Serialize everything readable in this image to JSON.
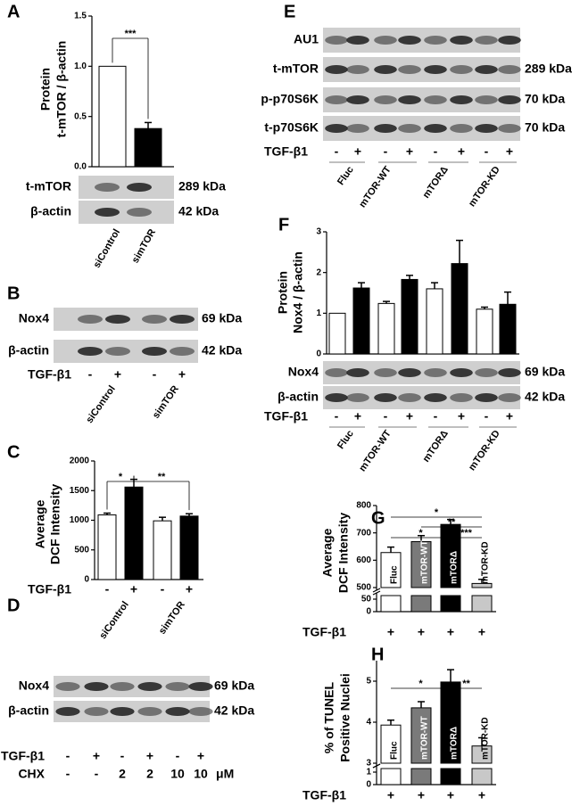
{
  "panel_labels": [
    "A",
    "B",
    "C",
    "D",
    "E",
    "F",
    "G",
    "H"
  ],
  "chart_data": [
    {
      "type": "bar",
      "ylabel": [
        "Protein",
        "t-mTOR / β-actin"
      ],
      "categories": [
        "siControl",
        "simTOR"
      ],
      "values": [
        1.0,
        0.38
      ],
      "errors": [
        null,
        0.06
      ],
      "colors": [
        "#ffffff",
        "#000000"
      ],
      "ylim": [
        0,
        1.5
      ],
      "yticks": [
        {
          "value": 0,
          "label": "0.0"
        },
        0.5,
        {
          "value": 1,
          "label": "1.0"
        },
        1.5
      ],
      "annotations": [
        "***"
      ]
    },
    {
      "type": "bar",
      "ylabel": [
        "Average",
        "DCF Intensity"
      ],
      "values": [
        1090,
        1560,
        990,
        1070
      ],
      "errors": [
        30,
        130,
        60,
        40
      ],
      "colors": [
        "#ffffff",
        "#000000",
        "#ffffff",
        "#000000"
      ],
      "ylim": [
        0,
        2000
      ],
      "yticks": [
        0,
        500,
        1000,
        1500,
        2000
      ],
      "annotations": [
        "*",
        "**"
      ],
      "lane_rows": [
        {
          "label": "TGF-β1",
          "values": [
            "-",
            "+",
            "-",
            "+"
          ]
        }
      ],
      "groups": [
        "siControl",
        "simTOR"
      ]
    },
    {
      "type": "bar",
      "ylabel": [
        "Protein",
        "Nox4 / β-actin"
      ],
      "values": [
        1.0,
        1.62,
        1.24,
        1.83,
        1.6,
        2.22,
        1.1,
        1.22
      ],
      "errors": [
        null,
        0.13,
        0.05,
        0.1,
        0.15,
        0.57,
        0.05,
        0.3
      ],
      "colors": [
        "#ffffff",
        "#000000",
        "#ffffff",
        "#000000",
        "#ffffff",
        "#000000",
        "#ffffff",
        "#000000"
      ],
      "ylim": [
        0,
        3
      ],
      "yticks": [
        0,
        1,
        2,
        3
      ]
    },
    {
      "type": "bar",
      "ylabel": [
        "Average",
        "DCF Intensity"
      ],
      "categories": [
        "Fluc",
        "mTOR-WT",
        "mTORΔ",
        "mTOR-KD"
      ],
      "values": [
        628,
        668,
        731,
        515
      ],
      "errors": [
        20,
        22,
        18,
        15
      ],
      "colors": [
        "#ffffff",
        "#7a7a7a",
        "#000000",
        "#c8c8c8"
      ],
      "ylim": [
        500,
        800
      ],
      "yticks": [
        500,
        600,
        700,
        800
      ],
      "ylim_lower": [
        0,
        50
      ],
      "yticks_lower": [
        0,
        50
      ],
      "annotations": [
        "*",
        "**",
        "*",
        "***"
      ],
      "lane_rows": [
        {
          "label": "TGF-β1",
          "values": [
            "+",
            "+",
            "+",
            "+"
          ]
        }
      ]
    },
    {
      "type": "bar",
      "ylabel": [
        "% of TUNEL",
        "Positive Nuclei"
      ],
      "categories": [
        "Fluc",
        "mTOR-WT",
        "mTORΔ",
        "mTOR-KD"
      ],
      "values": [
        3.93,
        4.35,
        4.98,
        3.42
      ],
      "errors": [
        0.12,
        0.15,
        0.3,
        0.2
      ],
      "colors": [
        "#ffffff",
        "#7a7a7a",
        "#000000",
        "#c8c8c8"
      ],
      "ylim": [
        3,
        5.5
      ],
      "yticks": [
        3,
        4,
        5
      ],
      "ylim_lower": [
        0,
        1
      ],
      "yticks_lower": [
        0,
        1
      ],
      "annotations": [
        "*",
        "**"
      ],
      "lane_rows": [
        {
          "label": "TGF-β1",
          "values": [
            "+",
            "+",
            "+",
            "+"
          ]
        }
      ]
    }
  ],
  "blots": [
    {
      "rows": [
        {
          "label": "t-mTOR",
          "size": "289 kDa"
        },
        {
          "label": "β-actin",
          "size": "42 kDa"
        }
      ]
    },
    {
      "rows": [
        {
          "label": "Nox4",
          "size": "69 kDa"
        },
        {
          "label": "β-actin",
          "size": "42 kDa"
        }
      ],
      "lane_rows": [
        {
          "label": "TGF-β1",
          "values": [
            "-",
            "+",
            "-",
            "+"
          ]
        }
      ],
      "groups": [
        "siControl",
        "simTOR"
      ]
    },
    {
      "rows": [
        {
          "label": "Nox4",
          "size": "69 kDa"
        },
        {
          "label": "β-actin",
          "size": "42 kDa"
        }
      ],
      "lane_rows": [
        {
          "label": "TGF-β1",
          "values": [
            "-",
            "+",
            "-",
            "+",
            "-",
            "+"
          ]
        },
        {
          "label": "CHX",
          "values": [
            "-",
            "-",
            "2",
            "2",
            "10",
            "10"
          ],
          "unit": "μM"
        }
      ]
    },
    {
      "rows": [
        {
          "label": "AU1"
        },
        {
          "label": "t-mTOR",
          "size": "289 kDa"
        },
        {
          "label": "p-p70S6K",
          "size": "70 kDa"
        },
        {
          "label": "t-p70S6K",
          "size": "70 kDa"
        }
      ],
      "lane_rows": [
        {
          "label": "TGF-β1",
          "values": [
            "-",
            "+",
            "-",
            "+",
            "-",
            "+",
            "-",
            "+"
          ]
        }
      ],
      "groups": [
        "Fluc",
        "mTOR-WT",
        "mTORΔ",
        "mTOR-KD"
      ]
    },
    {
      "rows": [
        {
          "label": "Nox4",
          "size": "69 kDa"
        },
        {
          "label": "β-actin",
          "size": "42 kDa"
        }
      ],
      "lane_rows": [
        {
          "label": "TGF-β1",
          "values": [
            "-",
            "+",
            "-",
            "+",
            "-",
            "+",
            "-",
            "+"
          ]
        }
      ],
      "groups": [
        "Fluc",
        "mTOR-WT",
        "mTORΔ",
        "mTOR-KD"
      ]
    }
  ]
}
